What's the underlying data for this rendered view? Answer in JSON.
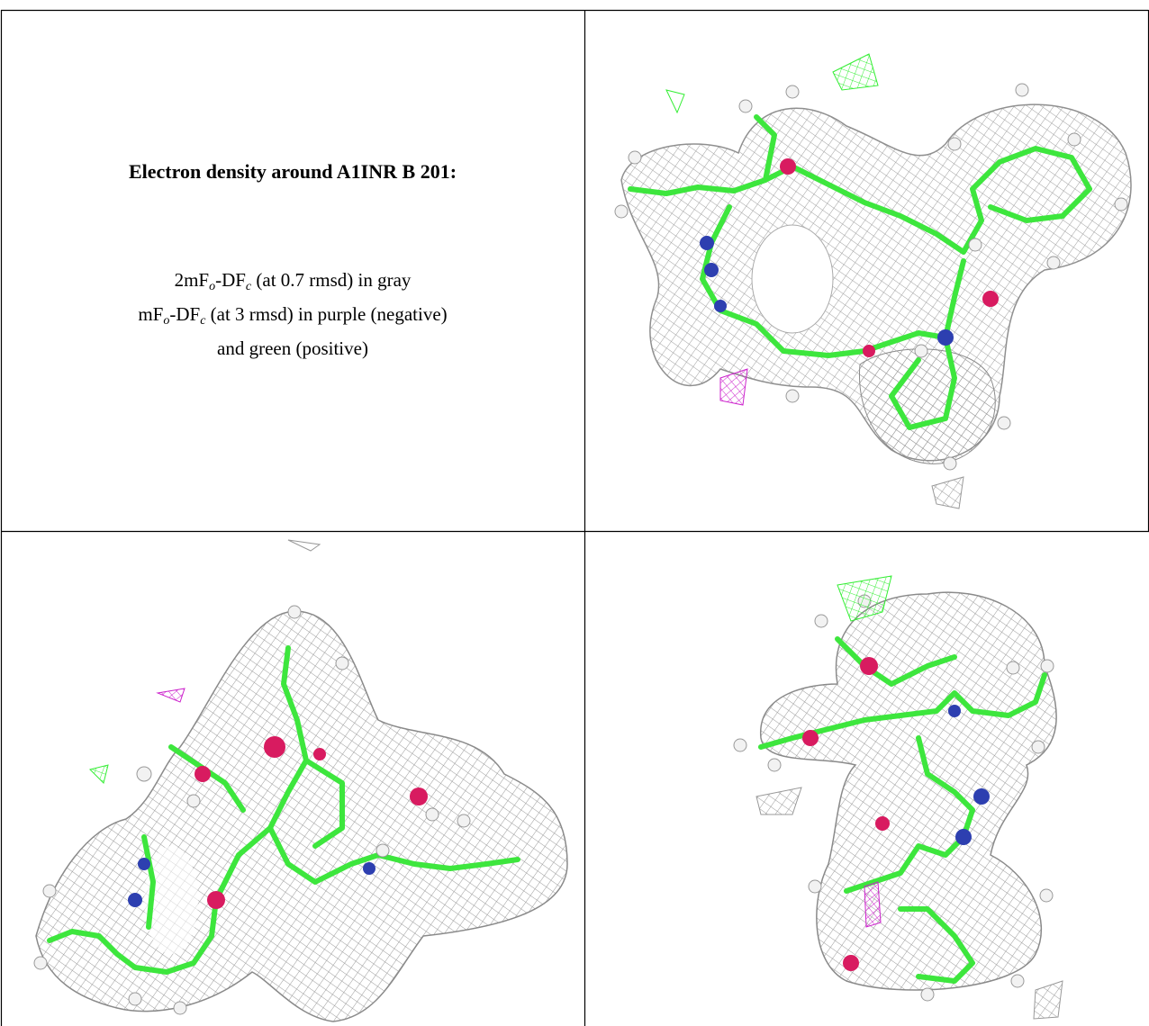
{
  "caption": {
    "title": "Electron density around A1INR B 201:",
    "lines": [
      [
        "2mF",
        "o",
        "-DF",
        "c",
        " (at 0.7 rmsd) in gray"
      ],
      [
        "mF",
        "o",
        "-DF",
        "c",
        " (at 3 rmsd) in purple (negative)"
      ],
      [
        "and green (positive)"
      ]
    ]
  }
}
